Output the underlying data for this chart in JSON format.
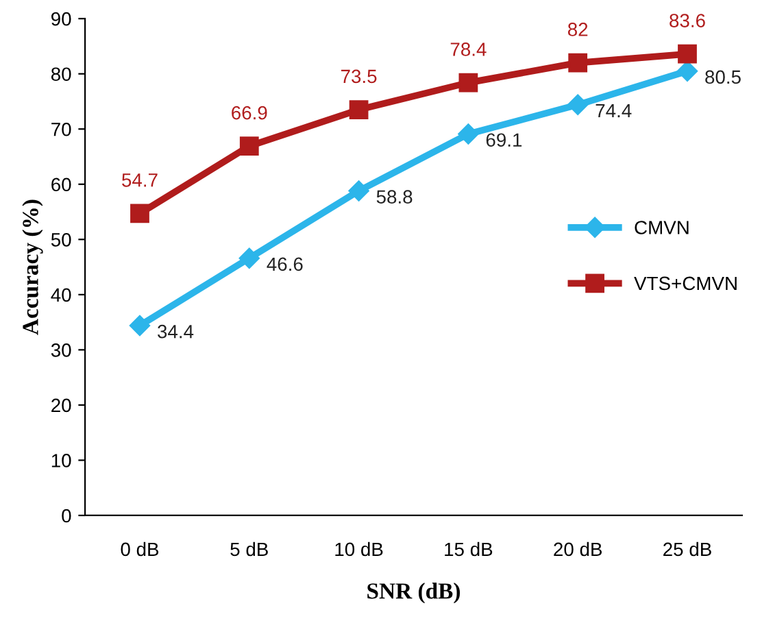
{
  "chart_data": {
    "type": "line",
    "xlabel": "SNR (dB)",
    "ylabel": "Accuracy (%)",
    "categories": [
      "0 dB",
      "5 dB",
      "10 dB",
      "15 dB",
      "20 dB",
      "25 dB"
    ],
    "series": [
      {
        "name": "CMVN",
        "color": "#2cb5ea",
        "marker": "diamond",
        "values": [
          34.4,
          46.6,
          58.8,
          69.1,
          74.4,
          80.5
        ]
      },
      {
        "name": "VTS+CMVN",
        "color": "#b01c1c",
        "marker": "square",
        "values": [
          54.7,
          66.9,
          73.5,
          78.4,
          82,
          83.6
        ]
      }
    ],
    "ylim": [
      0,
      90
    ],
    "yticks": [
      0,
      10,
      20,
      30,
      40,
      50,
      60,
      70,
      80,
      90
    ],
    "grid": false,
    "legend": "right",
    "data_labels": true,
    "line_style": "solid"
  }
}
